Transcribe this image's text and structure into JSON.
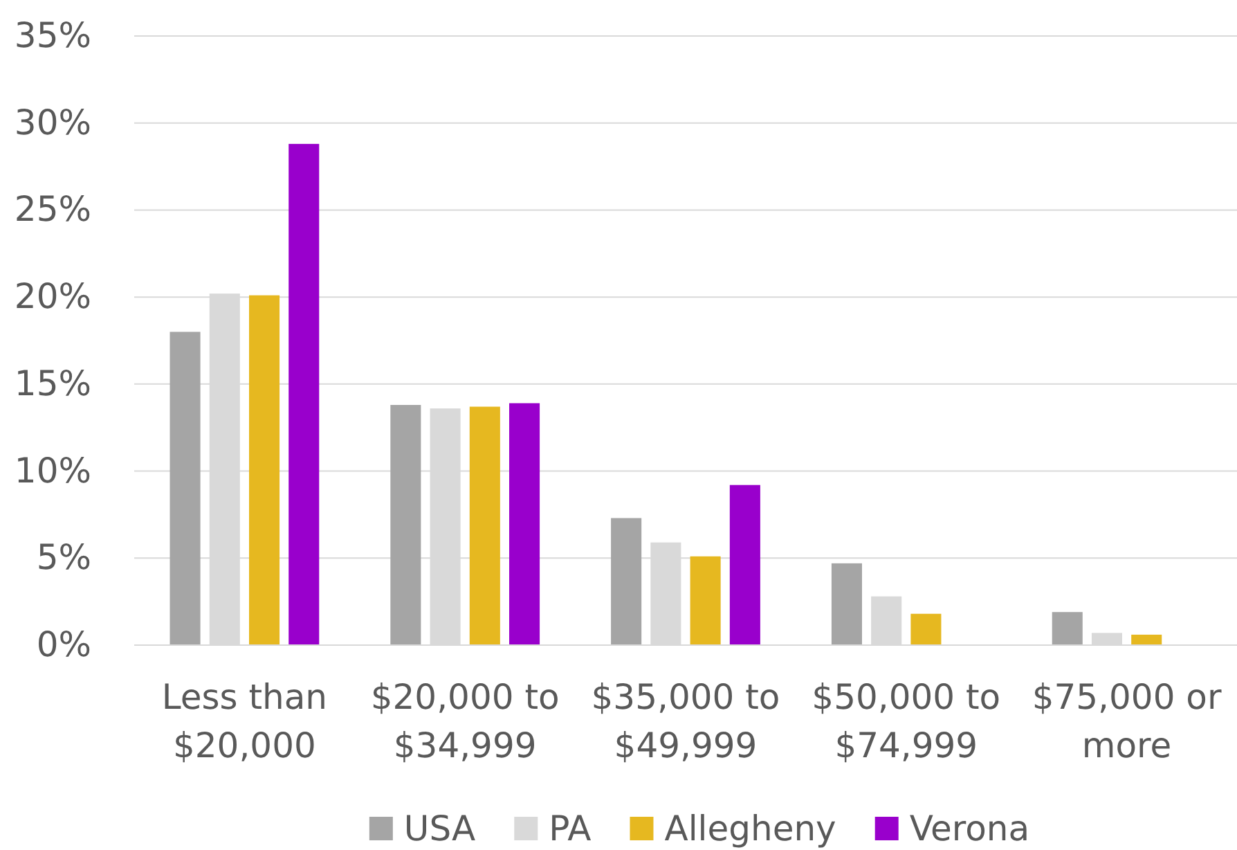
{
  "chart_data": {
    "type": "bar",
    "categories": [
      "Less than $20,000",
      "$20,000 to $34,999",
      "$35,000 to $49,999",
      "$50,000 to $74,999",
      "$75,000 or more"
    ],
    "series": [
      {
        "name": "USA",
        "color": "#a5a5a5",
        "values": [
          18.0,
          13.8,
          7.3,
          4.7,
          1.9
        ]
      },
      {
        "name": "PA",
        "color": "#d9d9d9",
        "values": [
          20.2,
          13.6,
          5.9,
          2.8,
          0.7
        ]
      },
      {
        "name": "Allegheny",
        "color": "#e6b820",
        "values": [
          20.1,
          13.7,
          5.1,
          1.8,
          0.6
        ]
      },
      {
        "name": "Verona",
        "color": "#9900cc",
        "values": [
          28.8,
          13.9,
          9.2,
          0,
          0
        ]
      }
    ],
    "ylim": [
      0,
      35
    ],
    "yticks": [
      {
        "value": 0,
        "label": "0%"
      },
      {
        "value": 5,
        "label": "5%"
      },
      {
        "value": 10,
        "label": "10%"
      },
      {
        "value": 15,
        "label": "15%"
      },
      {
        "value": 20,
        "label": "20%"
      },
      {
        "value": 25,
        "label": "25%"
      },
      {
        "value": 30,
        "label": "30%"
      },
      {
        "value": 35,
        "label": "35%"
      }
    ],
    "grid": "y",
    "legend": "bottom"
  }
}
